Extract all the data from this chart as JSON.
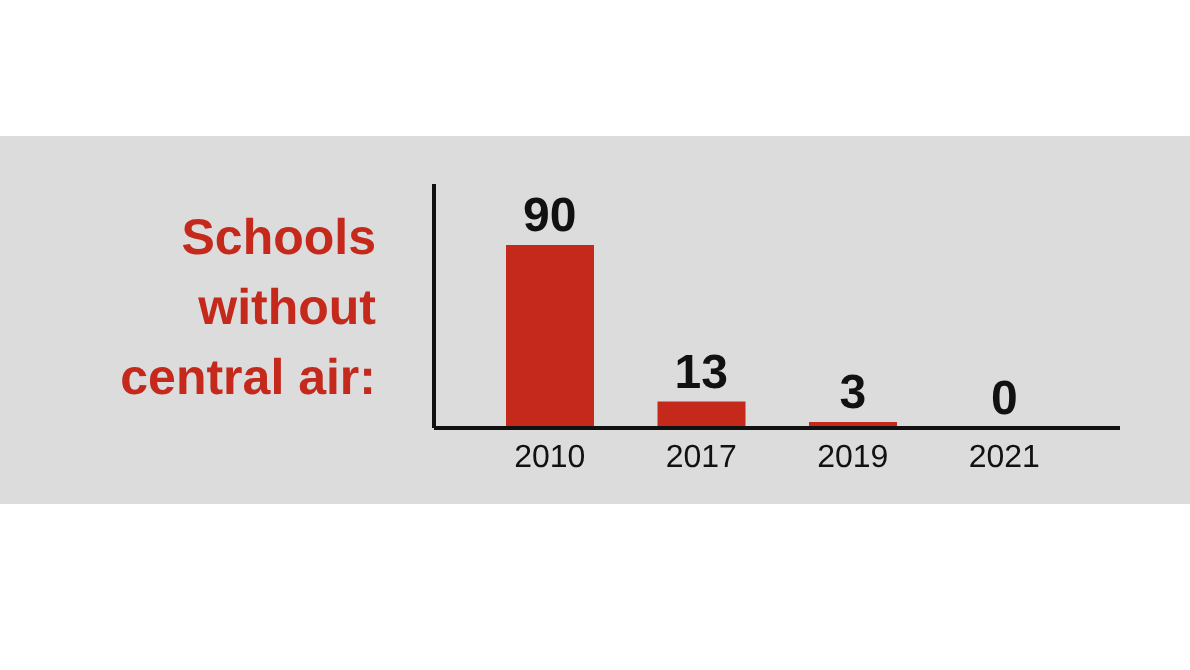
{
  "chart_data": {
    "type": "bar",
    "title": "Schools without central air:",
    "categories": [
      "2010",
      "2017",
      "2019",
      "2021"
    ],
    "values": [
      90,
      13,
      3,
      0
    ],
    "color": "#c4291c",
    "ylim": [
      0,
      120
    ],
    "tick_labels": "x",
    "data_labels": true
  }
}
